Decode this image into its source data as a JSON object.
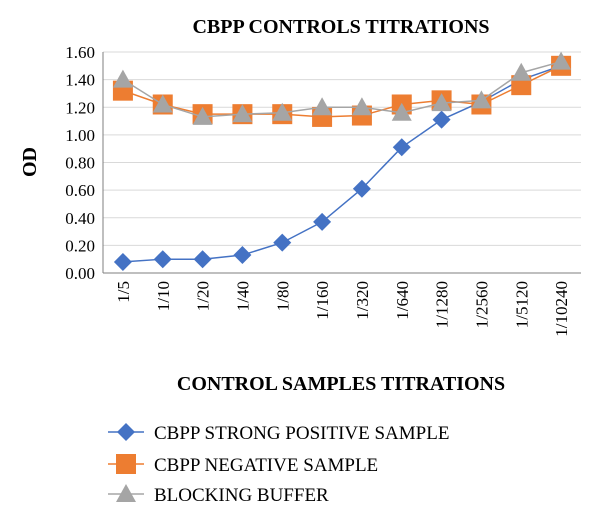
{
  "chart_data": {
    "type": "line",
    "title": "CBPP CONTROLS TITRATIONS",
    "xlabel": "CONTROL SAMPLES TITRATIONS",
    "ylabel": "OD",
    "ylim": [
      0,
      1.6
    ],
    "yticks": [
      "0.00",
      "0.20",
      "0.40",
      "0.60",
      "0.80",
      "1.00",
      "1.20",
      "1.40",
      "1.60"
    ],
    "grid": true,
    "legend": "bottom",
    "categories": [
      "1/5",
      "1/10",
      "1/20",
      "1/40",
      "1/80",
      "1/160",
      "1/320",
      "1/640",
      "1/1280",
      "1/2560",
      "1/5120",
      "1/10240"
    ],
    "series": [
      {
        "name": "CBPP STRONG POSITIVE SAMPLE",
        "marker": "diamond",
        "color": "#4472C4",
        "values": [
          0.08,
          0.1,
          0.1,
          0.13,
          0.22,
          0.37,
          0.61,
          0.91,
          1.11,
          1.24,
          1.4,
          1.5
        ]
      },
      {
        "name": "CBPP NEGATIVE SAMPLE",
        "marker": "square",
        "color": "#ED7D31",
        "values": [
          1.32,
          1.22,
          1.15,
          1.15,
          1.15,
          1.13,
          1.14,
          1.22,
          1.25,
          1.22,
          1.36,
          1.5
        ]
      },
      {
        "name": "BLOCKING BUFFER",
        "marker": "triangle",
        "color": "#A5A5A5",
        "values": [
          1.4,
          1.22,
          1.13,
          1.15,
          1.16,
          1.2,
          1.2,
          1.16,
          1.23,
          1.25,
          1.45,
          1.53
        ]
      }
    ]
  }
}
